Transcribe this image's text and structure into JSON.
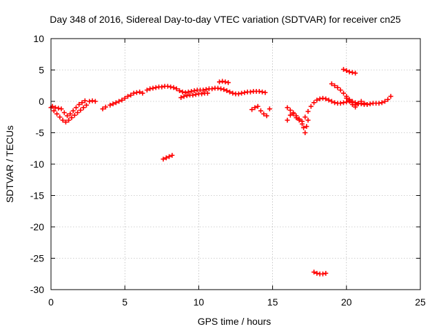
{
  "chart_data": {
    "type": "scatter",
    "title": "Day 348 of 2016, Sidereal Day-to-day VTEC variation (SDTVAR) for receiver cn25",
    "xlabel": "GPS time / hours",
    "ylabel": "SDTVAR / TECUs",
    "xlim": [
      0,
      25
    ],
    "ylim": [
      -30,
      10
    ],
    "xticks": [
      0,
      5,
      10,
      15,
      20,
      25
    ],
    "yticks": [
      10,
      5,
      0,
      -5,
      -10,
      -15,
      -20,
      -25,
      -30
    ],
    "grid": true,
    "marker": "plus",
    "color": "#ff0000",
    "series": [
      {
        "name": "segment-1",
        "x": [
          0.0,
          0.2,
          0.4,
          0.6,
          0.8,
          1.0,
          1.2,
          1.4,
          1.6,
          1.8,
          2.0,
          2.2,
          2.4,
          0.1,
          0.3,
          0.5,
          0.7,
          0.9,
          1.1,
          1.3,
          1.5,
          1.7,
          1.9,
          2.1,
          2.3
        ],
        "y": [
          -1.0,
          -1.5,
          -2.0,
          -2.5,
          -3.0,
          -3.3,
          -3.0,
          -2.6,
          -2.2,
          -1.8,
          -1.4,
          -1.0,
          -0.6,
          -0.8,
          -1.0,
          -1.1,
          -1.2,
          -1.8,
          -2.3,
          -2.0,
          -1.5,
          -1.0,
          -0.5,
          -0.2,
          0.1
        ]
      },
      {
        "name": "segment-2",
        "x": [
          2.6,
          2.8,
          3.0,
          3.5,
          3.7,
          4.0,
          4.2,
          4.4,
          4.6,
          4.8,
          5.0,
          5.2,
          5.4,
          5.6,
          5.8,
          6.0,
          6.2
        ],
        "y": [
          0.0,
          0.1,
          0.0,
          -1.2,
          -0.9,
          -0.6,
          -0.4,
          -0.2,
          0.0,
          0.2,
          0.5,
          0.8,
          1.0,
          1.3,
          1.4,
          1.5,
          1.3
        ]
      },
      {
        "name": "segment-3",
        "x": [
          6.5,
          6.7,
          6.9,
          7.1,
          7.3,
          7.5,
          7.7,
          7.9,
          8.1,
          8.3,
          8.5,
          8.7,
          8.9,
          9.1,
          9.3,
          9.5,
          9.7,
          9.9,
          10.1,
          10.3,
          10.5,
          10.7,
          10.9,
          11.1,
          11.3,
          11.5,
          11.7,
          11.9,
          12.1,
          12.3,
          12.5,
          12.7,
          12.9,
          13.1,
          13.3,
          13.5,
          13.7,
          13.9,
          14.1,
          14.3,
          14.5
        ],
        "y": [
          1.8,
          2.0,
          2.1,
          2.2,
          2.3,
          2.3,
          2.4,
          2.4,
          2.3,
          2.2,
          2.0,
          1.7,
          1.5,
          1.4,
          1.5,
          1.6,
          1.7,
          1.8,
          1.8,
          1.8,
          1.9,
          2.0,
          2.0,
          2.1,
          2.1,
          2.0,
          1.9,
          1.7,
          1.5,
          1.3,
          1.2,
          1.2,
          1.3,
          1.4,
          1.5,
          1.5,
          1.6,
          1.6,
          1.6,
          1.5,
          1.4
        ]
      },
      {
        "name": "segment-4",
        "x": [
          8.8,
          9.0,
          9.2,
          9.4,
          9.6,
          9.8,
          10.0,
          10.2,
          10.4,
          10.6,
          11.4,
          11.6,
          11.8,
          12.0
        ],
        "y": [
          0.6,
          0.8,
          0.9,
          1.0,
          1.0,
          1.1,
          1.2,
          1.2,
          1.3,
          1.3,
          3.1,
          3.2,
          3.1,
          3.0
        ]
      },
      {
        "name": "segment-5",
        "x": [
          13.6,
          13.8,
          14.0,
          14.2,
          14.4,
          14.6,
          14.8
        ],
        "y": [
          -1.3,
          -1.0,
          -0.8,
          -1.5,
          -2.0,
          -2.3,
          -1.2
        ]
      },
      {
        "name": "segment-6",
        "x": [
          7.6,
          7.8,
          8.0,
          8.2
        ],
        "y": [
          -9.2,
          -9.0,
          -8.8,
          -8.6
        ]
      },
      {
        "name": "segment-7",
        "x": [
          16.0,
          16.2,
          16.4,
          16.6,
          16.8,
          17.0,
          17.2,
          17.4,
          17.6,
          17.8,
          18.0,
          18.2,
          18.4,
          18.6,
          18.8,
          19.0,
          19.2,
          19.4,
          19.6,
          19.8,
          20.0,
          20.2,
          20.4,
          20.6,
          20.8,
          21.0,
          21.2,
          21.4,
          21.6,
          21.8,
          22.0,
          22.2,
          22.4,
          22.6,
          22.8,
          23.0
        ],
        "y": [
          -1.0,
          -1.4,
          -1.8,
          -2.3,
          -2.8,
          -3.2,
          -2.5,
          -1.6,
          -0.8,
          -0.2,
          0.2,
          0.4,
          0.5,
          0.4,
          0.2,
          0.0,
          -0.2,
          -0.3,
          -0.3,
          -0.2,
          -0.1,
          0.0,
          0.0,
          -0.2,
          -0.3,
          -0.4,
          -0.5,
          -0.5,
          -0.4,
          -0.3,
          -0.3,
          -0.3,
          -0.2,
          0.0,
          0.3,
          0.8
        ]
      },
      {
        "name": "segment-8",
        "x": [
          16.0,
          16.2,
          16.4,
          16.6,
          16.8,
          17.0,
          17.1,
          17.2,
          17.3,
          17.4
        ],
        "y": [
          -3.0,
          -2.2,
          -2.0,
          -2.6,
          -3.0,
          -3.6,
          -4.2,
          -5.0,
          -4.0,
          -3.0
        ]
      },
      {
        "name": "segment-9",
        "x": [
          19.0,
          19.2,
          19.4,
          19.6,
          19.8,
          20.0,
          20.2,
          20.4,
          20.6,
          20.8,
          21.0,
          21.2,
          21.4,
          20.0,
          20.2,
          20.4,
          20.6
        ],
        "y": [
          2.8,
          2.5,
          2.2,
          1.8,
          1.3,
          0.8,
          0.3,
          -0.2,
          -0.6,
          -0.4,
          0.0,
          -0.3,
          -0.5,
          0.5,
          0.1,
          -0.5,
          -0.9
        ]
      },
      {
        "name": "segment-10",
        "x": [
          19.8,
          20.0,
          20.2,
          20.4,
          20.6
        ],
        "y": [
          5.1,
          4.9,
          4.7,
          4.6,
          4.5
        ]
      },
      {
        "name": "segment-11",
        "x": [
          17.8,
          18.0,
          18.2,
          18.4,
          18.6
        ],
        "y": [
          -27.2,
          -27.4,
          -27.5,
          -27.5,
          -27.4
        ]
      }
    ]
  }
}
